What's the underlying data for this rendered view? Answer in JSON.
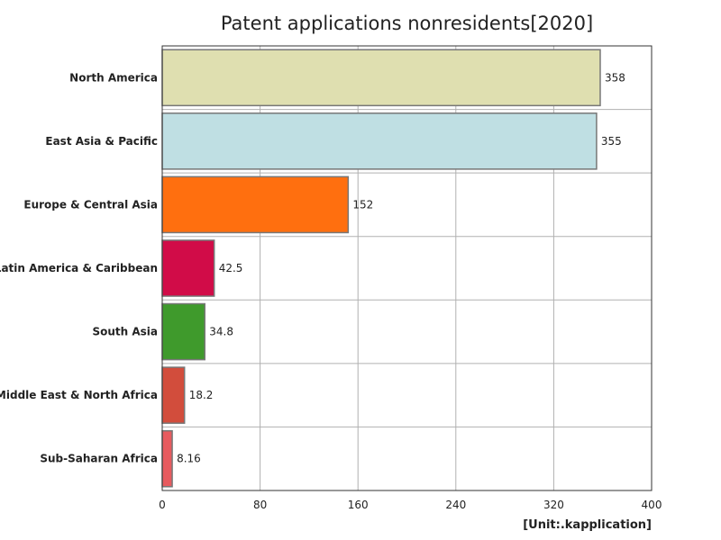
{
  "chart_data": {
    "type": "bar",
    "orientation": "horizontal",
    "title": "Patent applications nonresidents[2020]",
    "unit": "[Unit:.kapplication]",
    "categories": [
      "North America",
      "East Asia & Pacific",
      "Europe & Central Asia",
      "Latin America & Caribbean",
      "South Asia",
      "Middle East & North Africa",
      "Sub-Saharan Africa"
    ],
    "values": [
      358,
      355,
      152,
      42.5,
      34.8,
      18.2,
      8.16
    ],
    "value_labels": [
      "358",
      "355",
      "152",
      "42.5",
      "34.8",
      "18.2",
      "8.16"
    ],
    "colors": [
      "#dfdfb0",
      "#bfdfe3",
      "#ff6f0f",
      "#d10c48",
      "#3f9a2c",
      "#d24d3c",
      "#e75b5f"
    ],
    "xlim": [
      0,
      400
    ],
    "xticks": [
      0,
      80,
      160,
      240,
      320,
      400
    ],
    "grid": true
  }
}
